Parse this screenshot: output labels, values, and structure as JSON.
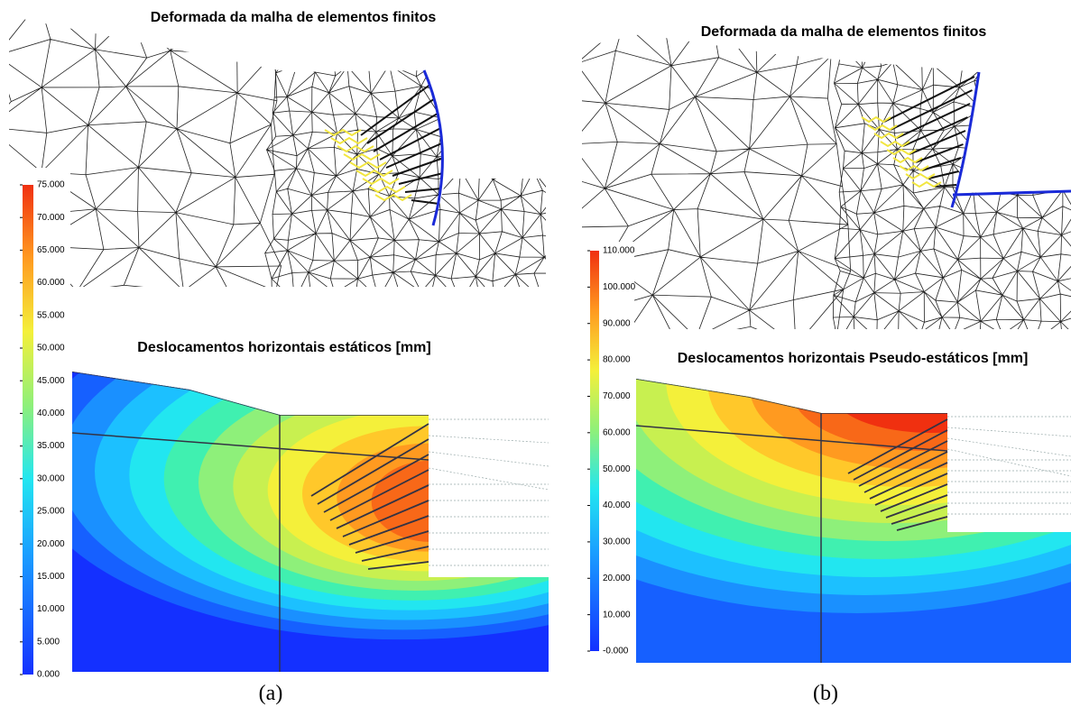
{
  "panels": [
    {
      "mesh_title": "Deformada da malha de elementos finitos",
      "contour_title": "Deslocamentos horizontais estáticos [mm]",
      "label": "(a)",
      "colorbar_ticks": [
        {
          "value": 0,
          "label": "0.000"
        },
        {
          "value": 5,
          "label": "5.000"
        },
        {
          "value": 10,
          "label": "10.000"
        },
        {
          "value": 15,
          "label": "15.000"
        },
        {
          "value": 20,
          "label": "20.000"
        },
        {
          "value": 25,
          "label": "25.000"
        },
        {
          "value": 30,
          "label": "30.000"
        },
        {
          "value": 35,
          "label": "35.000"
        },
        {
          "value": 40,
          "label": "40.000"
        },
        {
          "value": 45,
          "label": "45.000"
        },
        {
          "value": 50,
          "label": "50.000"
        },
        {
          "value": 55,
          "label": "55.000"
        },
        {
          "value": 60,
          "label": "60.000"
        },
        {
          "value": 65,
          "label": "65.000"
        },
        {
          "value": 70,
          "label": "70.000"
        },
        {
          "value": 75,
          "label": "75.000"
        }
      ]
    },
    {
      "mesh_title": "Deformada da malha de elementos finitos",
      "contour_title": "Deslocamentos horizontais Pseudo-estáticos [mm]",
      "label": "(b)",
      "colorbar_ticks": [
        {
          "value": 0,
          "label": "-0.000"
        },
        {
          "value": 10,
          "label": "10.000"
        },
        {
          "value": 20,
          "label": "20.000"
        },
        {
          "value": 30,
          "label": "30.000"
        },
        {
          "value": 40,
          "label": "40.000"
        },
        {
          "value": 50,
          "label": "50.000"
        },
        {
          "value": 60,
          "label": "60.000"
        },
        {
          "value": 70,
          "label": "70.000"
        },
        {
          "value": 80,
          "label": "80.000"
        },
        {
          "value": 90,
          "label": "90.000"
        },
        {
          "value": 100,
          "label": "100.000"
        },
        {
          "value": 110,
          "label": "110.000"
        }
      ]
    }
  ]
}
